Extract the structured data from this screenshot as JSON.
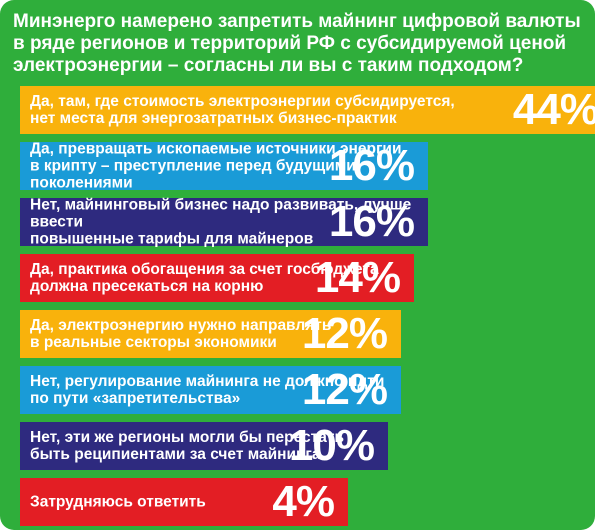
{
  "chart_data": {
    "type": "bar",
    "orientation": "horizontal",
    "title": "Минэнерго намерено запретить майнинг цифровой валюты в ряде регионов и территорий РФ с субсидируемой ценой электроэнергии – согласны ли вы с таким подходом?",
    "categories": [
      "Да, там, где стоимость электроэнергии субсидируется,\nнет места для энергозатратных бизнес-практик",
      "Да, превращать ископаемые источники энергии\nв крипту – преступление перед будущими поколениями",
      "Нет, майнинговый бизнес надо развивать, лучше ввести\nповышенные тарифы для майнеров",
      "Да, практика обогащения за счет госбюджета\nдолжна пресекаться на корню",
      "Да, электроэнергию нужно направлять\nв реальные секторы экономики",
      "Нет, регулирование майнинга не должно идти\nпо пути «запретительства»",
      "Нет, эти же регионы могли бы перестать\nбыть реципиентами за счет майнинга",
      "Затрудняюсь ответить"
    ],
    "values": [
      44,
      16,
      16,
      14,
      12,
      12,
      10,
      4
    ],
    "value_labels": [
      "44%",
      "16%",
      "16%",
      "14%",
      "12%",
      "12%",
      "10%",
      "4%"
    ],
    "unit": "%",
    "bar_colors": [
      "#f9b20c",
      "#1a9bd7",
      "#2e2a7f",
      "#e31e24",
      "#f9b20c",
      "#1a9bd7",
      "#2e2a7f",
      "#e31e24"
    ],
    "background_color": "#2fae3b",
    "grid": false,
    "legend": "none"
  }
}
